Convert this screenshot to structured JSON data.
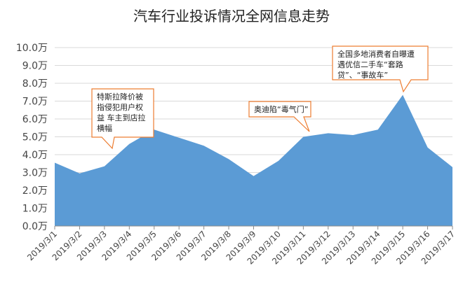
{
  "chart_data": {
    "type": "area",
    "title": "汽车行业投诉情况全网信息走势",
    "xlabel": "",
    "ylabel": "",
    "categories": [
      "2019/3/1",
      "2019/3/2",
      "2019/3/3",
      "2019/3/4",
      "2019/3/5",
      "2019/3/6",
      "2019/3/7",
      "2019/3/8",
      "2019/3/9",
      "2019/3/10",
      "2019/3/11",
      "2019/3/12",
      "2019/3/13",
      "2019/3/14",
      "2019/3/15",
      "2019/3/16",
      "2019/3/17"
    ],
    "values": [
      3.55,
      2.95,
      3.35,
      4.6,
      5.4,
      4.95,
      4.5,
      3.75,
      2.8,
      3.65,
      5.0,
      5.2,
      5.1,
      5.4,
      7.35,
      4.4,
      3.3
    ],
    "ylim": [
      0,
      10
    ],
    "yticks": [
      0,
      1,
      2,
      3,
      4,
      5,
      6,
      7,
      8,
      9,
      10
    ],
    "ytick_labels": [
      "0.0万",
      "1.0万",
      "2.0万",
      "3.0万",
      "4.0万",
      "5.0万",
      "6.0万",
      "7.0万",
      "8.0万",
      "9.0万",
      "10.0万"
    ],
    "grid": true,
    "color": "#5b9bd5",
    "annotation_color": "#ed7d31",
    "annotations": [
      {
        "category": "2019/3/5",
        "lines": [
          "特斯拉降价被",
          "指侵犯用户权",
          "益 车主到店拉",
          "横幅"
        ]
      },
      {
        "category": "2019/3/11",
        "lines": [
          "奥迪陷“毒气门”"
        ]
      },
      {
        "category": "2019/3/15",
        "lines": [
          "全国多地消费者自曝遭",
          "遇优信二手车“套路",
          "贷”、“事故车”"
        ]
      }
    ]
  }
}
